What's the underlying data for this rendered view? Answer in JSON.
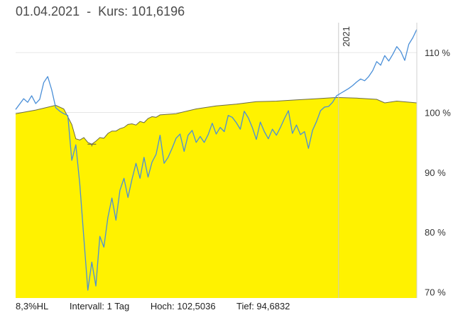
{
  "header": {
    "date": "01.04.2021",
    "separator": "-",
    "price_label": "Kurs: 101,6196"
  },
  "footer": {
    "ratio": "8,3%HL",
    "interval": "Intervall: 1 Tag",
    "high": "Hoch: 102,5036",
    "low": "Tief: 94,6832"
  },
  "colors": {
    "fill": "#fff200",
    "fill_line": "#6b6b45",
    "series": "#4a8fd8",
    "grid": "#e6e6e6"
  },
  "chart_data": {
    "type": "area",
    "xlim": [
      0,
      100
    ],
    "ylim": [
      69,
      115
    ],
    "y_ticks": [
      {
        "value": 70,
        "label": "70 %"
      },
      {
        "value": 80,
        "label": "80 %"
      },
      {
        "value": 90,
        "label": "90 %"
      },
      {
        "value": 100,
        "label": "100 %"
      },
      {
        "value": 110,
        "label": "110 %"
      }
    ],
    "x_markers": [
      {
        "x": 80.5,
        "label": "2021"
      }
    ],
    "grid": true,
    "series": [
      {
        "type": "area",
        "x": [
          0,
          5,
          10,
          12,
          14,
          15,
          16,
          17,
          18,
          19,
          20,
          21,
          22,
          23,
          24,
          25,
          26,
          27,
          28,
          29,
          30,
          31,
          32,
          33,
          34,
          35,
          36,
          40,
          45,
          50,
          55,
          60,
          65,
          70,
          75,
          80,
          85,
          90,
          92,
          95,
          100
        ],
        "y": [
          99.8,
          100.4,
          101.2,
          100.6,
          98.0,
          95.6,
          95.4,
          95.8,
          95.0,
          94.7,
          95.2,
          95.8,
          95.7,
          96.5,
          96.9,
          96.9,
          97.3,
          97.5,
          98.0,
          98.1,
          97.9,
          98.5,
          98.3,
          99.0,
          99.3,
          99.2,
          99.6,
          99.8,
          100.6,
          101.1,
          101.4,
          101.8,
          101.9,
          102.1,
          102.3,
          102.5,
          102.4,
          102.2,
          101.6,
          101.9,
          101.6
        ]
      },
      {
        "type": "line",
        "x": [
          0,
          2,
          3,
          4,
          5,
          6,
          7,
          8,
          9,
          10,
          11,
          12,
          13,
          14,
          15,
          16,
          17,
          18,
          19,
          20,
          21,
          22,
          23,
          24,
          25,
          26,
          27,
          28,
          29,
          30,
          31,
          32,
          33,
          34,
          35,
          36,
          37,
          38,
          39,
          40,
          41,
          42,
          43,
          44,
          45,
          46,
          47,
          48,
          49,
          50,
          51,
          52,
          53,
          54,
          55,
          56,
          57,
          58,
          59,
          60,
          61,
          62,
          63,
          64,
          65,
          66,
          67,
          68,
          69,
          70,
          71,
          72,
          73,
          74,
          75,
          76,
          77,
          78,
          79,
          80,
          81,
          82,
          83,
          84,
          85,
          86,
          87,
          88,
          89,
          90,
          91,
          92,
          93,
          94,
          95,
          96,
          97,
          98,
          99,
          100
        ],
        "y": [
          100.5,
          102.3,
          101.7,
          102.8,
          101.5,
          102.2,
          105.0,
          106.0,
          103.8,
          100.8,
          100.2,
          99.8,
          99.5,
          92.0,
          94.6,
          88.0,
          79.0,
          70.3,
          75.0,
          71.0,
          79.3,
          77.5,
          82.5,
          85.7,
          82.0,
          87.0,
          89.0,
          85.8,
          88.8,
          91.5,
          89.0,
          92.5,
          89.2,
          91.7,
          93.0,
          96.2,
          91.5,
          92.5,
          94.0,
          95.7,
          96.4,
          93.5,
          96.2,
          97.0,
          95.0,
          96.0,
          95.0,
          96.3,
          98.2,
          96.4,
          97.5,
          96.8,
          99.5,
          99.2,
          98.3,
          97.2,
          100.2,
          99.1,
          97.5,
          95.5,
          98.4,
          96.8,
          95.6,
          97.2,
          96.2,
          97.5,
          99.0,
          100.3,
          96.5,
          97.9,
          96.3,
          96.8,
          94.0,
          97.0,
          98.5,
          100.3,
          100.9,
          101.0,
          101.7,
          102.8,
          103.2,
          103.6,
          104.0,
          104.5,
          105.1,
          105.6,
          105.3,
          106.0,
          107.0,
          108.5,
          107.9,
          109.5,
          108.6,
          109.7,
          111.0,
          110.2,
          108.7,
          111.4,
          112.5,
          113.9
        ]
      }
    ]
  }
}
